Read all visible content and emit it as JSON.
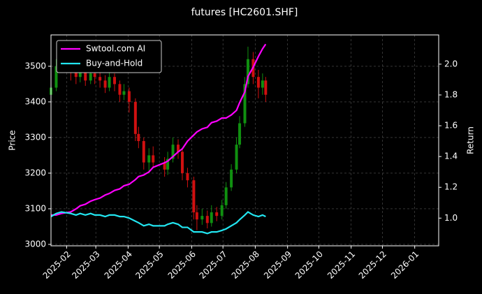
{
  "chart_data": {
    "type": "candlestick",
    "title": "futures [HC2601.SHF]",
    "ylabel": "Price",
    "y2label": "Return",
    "x": [
      "2025-01-17",
      "2025-01-22",
      "2025-01-27",
      "2025-02-05",
      "2025-02-10",
      "2025-02-14",
      "2025-02-19",
      "2025-02-24",
      "2025-02-28",
      "2025-03-05",
      "2025-03-10",
      "2025-03-14",
      "2025-03-19",
      "2025-03-24",
      "2025-03-28",
      "2025-04-02",
      "2025-04-08",
      "2025-04-11",
      "2025-04-16",
      "2025-04-21",
      "2025-04-25",
      "2025-05-06",
      "2025-05-09",
      "2025-05-14",
      "2025-05-19",
      "2025-05-23",
      "2025-05-28",
      "2025-06-03",
      "2025-06-06",
      "2025-06-11",
      "2025-06-16",
      "2025-06-20",
      "2025-06-25",
      "2025-06-30",
      "2025-07-04",
      "2025-07-09",
      "2025-07-14",
      "2025-07-17",
      "2025-07-22",
      "2025-07-25",
      "2025-07-30",
      "2025-08-04",
      "2025-08-08",
      "2025-08-11"
    ],
    "open": [
      3420,
      3440,
      3500,
      3510,
      3490,
      3470,
      3500,
      3460,
      3480,
      3470,
      3460,
      3440,
      3470,
      3450,
      3420,
      3430,
      3400,
      3310,
      3290,
      3230,
      3250,
      3230,
      3210,
      3240,
      3280,
      3260,
      3200,
      3180,
      3090,
      3070,
      3080,
      3060,
      3090,
      3080,
      3110,
      3160,
      3210,
      3280,
      3340,
      3450,
      3520,
      3470,
      3440,
      3460
    ],
    "high": [
      3460,
      3520,
      3530,
      3520,
      3505,
      3515,
      3510,
      3500,
      3495,
      3490,
      3475,
      3485,
      3480,
      3460,
      3450,
      3440,
      3410,
      3330,
      3300,
      3270,
      3275,
      3245,
      3260,
      3300,
      3295,
      3270,
      3215,
      3190,
      3110,
      3100,
      3095,
      3110,
      3105,
      3125,
      3175,
      3225,
      3300,
      3360,
      3470,
      3555,
      3540,
      3490,
      3480,
      3470
    ],
    "low": [
      3405,
      3430,
      3485,
      3460,
      3450,
      3455,
      3445,
      3450,
      3450,
      3440,
      3425,
      3430,
      3430,
      3400,
      3405,
      3370,
      3290,
      3270,
      3210,
      3200,
      3215,
      3190,
      3195,
      3230,
      3240,
      3180,
      3160,
      3070,
      3040,
      3055,
      3045,
      3050,
      3065,
      3070,
      3100,
      3150,
      3200,
      3270,
      3330,
      3440,
      3450,
      3410,
      3420,
      3400
    ],
    "close": [
      3440,
      3500,
      3510,
      3490,
      3470,
      3500,
      3460,
      3480,
      3470,
      3460,
      3440,
      3470,
      3450,
      3420,
      3430,
      3400,
      3310,
      3290,
      3230,
      3250,
      3230,
      3210,
      3240,
      3280,
      3260,
      3200,
      3180,
      3090,
      3070,
      3080,
      3060,
      3090,
      3080,
      3110,
      3160,
      3210,
      3280,
      3340,
      3450,
      3520,
      3470,
      3440,
      3460,
      3420
    ],
    "up_color": "#109010",
    "down_color": "#d01010",
    "series": [
      {
        "name": "Swtool.com AI",
        "color": "#ff00ff",
        "axis": "y2",
        "values": [
          1.02,
          1.02,
          1.03,
          1.04,
          1.06,
          1.08,
          1.09,
          1.11,
          1.12,
          1.13,
          1.15,
          1.16,
          1.18,
          1.19,
          1.21,
          1.22,
          1.25,
          1.27,
          1.28,
          1.3,
          1.33,
          1.36,
          1.37,
          1.4,
          1.43,
          1.45,
          1.5,
          1.54,
          1.56,
          1.58,
          1.59,
          1.62,
          1.63,
          1.65,
          1.65,
          1.67,
          1.7,
          1.75,
          1.82,
          1.92,
          1.98,
          2.05,
          2.1,
          2.13
        ]
      },
      {
        "name": "Buy-and-Hold",
        "color": "#22e5f0",
        "axis": "y2",
        "values": [
          1.01,
          1.03,
          1.04,
          1.03,
          1.02,
          1.03,
          1.02,
          1.03,
          1.02,
          1.02,
          1.01,
          1.02,
          1.02,
          1.01,
          1.01,
          1.0,
          0.98,
          0.97,
          0.95,
          0.96,
          0.95,
          0.95,
          0.96,
          0.97,
          0.96,
          0.94,
          0.94,
          0.91,
          0.91,
          0.91,
          0.9,
          0.91,
          0.91,
          0.92,
          0.93,
          0.95,
          0.97,
          0.99,
          1.02,
          1.04,
          1.02,
          1.01,
          1.02,
          1.01
        ]
      }
    ],
    "xlim": [
      "2025-01-17",
      "2026-01-24"
    ],
    "xticks": [
      {
        "value": "2025-02-01",
        "label": "2025-02"
      },
      {
        "value": "2025-03-01",
        "label": "2025-03"
      },
      {
        "value": "2025-04-01",
        "label": "2025-04"
      },
      {
        "value": "2025-05-01",
        "label": "2025-05"
      },
      {
        "value": "2025-06-01",
        "label": "2025-06"
      },
      {
        "value": "2025-07-01",
        "label": "2025-07"
      },
      {
        "value": "2025-08-01",
        "label": "2025-08"
      },
      {
        "value": "2025-09-01",
        "label": "2025-09"
      },
      {
        "value": "2025-10-01",
        "label": "2025-10"
      },
      {
        "value": "2025-11-01",
        "label": "2025-11"
      },
      {
        "value": "2025-12-01",
        "label": "2025-12"
      },
      {
        "value": "2026-01-01",
        "label": "2026-01"
      }
    ],
    "ylim": [
      2996,
      3588
    ],
    "yticks": [
      3000,
      3100,
      3200,
      3300,
      3400,
      3500
    ],
    "y2lim": [
      0.82,
      2.19
    ],
    "y2ticks": [
      {
        "value": 1,
        "label": "1.0"
      },
      1.2,
      1.4,
      1.6,
      1.8,
      {
        "value": 2,
        "label": "2.0"
      }
    ],
    "grid": true,
    "legend": "upper left"
  }
}
